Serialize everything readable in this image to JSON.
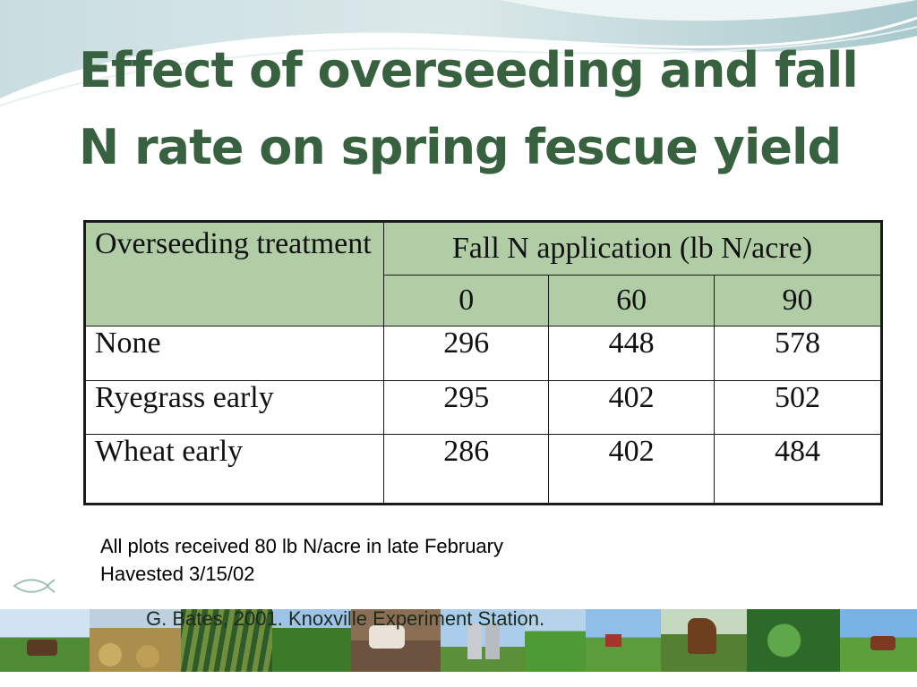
{
  "slide": {
    "title_line1": "Effect of overseeding and fall",
    "title_line2": "N rate on spring fescue yield"
  },
  "table": {
    "corner_header": "Overseeding treatment",
    "group_header": "Fall N application (lb N/acre)",
    "rates": [
      "0",
      "60",
      "90"
    ],
    "rows": [
      {
        "treatment": "None",
        "values": [
          "296",
          "448",
          "578"
        ]
      },
      {
        "treatment": "Ryegrass early",
        "values": [
          "295",
          "402",
          "502"
        ]
      },
      {
        "treatment": "Wheat early",
        "values": [
          "286",
          "402",
          "484"
        ]
      }
    ]
  },
  "notes": {
    "line1": "All plots received 80 lb N/acre in late February",
    "line2": "Havested 3/15/02",
    "citation": "G. Bates, 2001. Knoxville Experiment Station."
  },
  "theme": {
    "title_color": "#38613f",
    "header_fill": "#b1cda6"
  },
  "photo_strip": [
    {
      "icon": "cows-pasture-photo"
    },
    {
      "icon": "hay-bales-photo"
    },
    {
      "icon": "crop-rows-photo"
    },
    {
      "icon": "corn-field-photo"
    },
    {
      "icon": "cattle-herd-photo"
    },
    {
      "icon": "grain-silos-photo"
    },
    {
      "icon": "green-field-photo"
    },
    {
      "icon": "barn-landscape-photo"
    },
    {
      "icon": "horses-photo"
    },
    {
      "icon": "clover-photo"
    },
    {
      "icon": "cow-meadow-photo"
    }
  ]
}
